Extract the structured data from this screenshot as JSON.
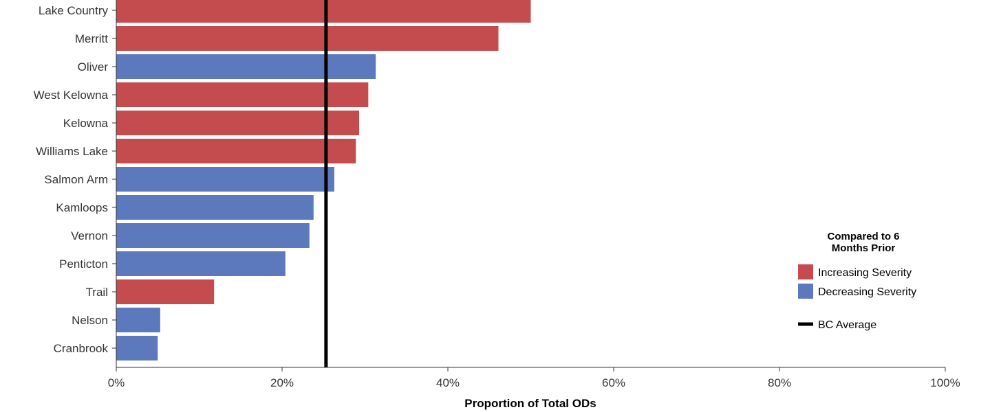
{
  "chart_data": {
    "type": "bar",
    "orientation": "horizontal",
    "categories": [
      "Lake Country",
      "Merritt",
      "Oliver",
      "West Kelowna",
      "Kelowna",
      "Williams Lake",
      "Salmon Arm",
      "Kamloops",
      "Vernon",
      "Penticton",
      "Trail",
      "Nelson",
      "Cranbrook"
    ],
    "values": [
      50.0,
      46.1,
      31.3,
      30.4,
      29.3,
      28.9,
      26.3,
      23.8,
      23.3,
      20.4,
      11.8,
      5.3,
      5.0
    ],
    "value_unit": "%",
    "severity": [
      "increasing",
      "increasing",
      "decreasing",
      "increasing",
      "increasing",
      "increasing",
      "decreasing",
      "decreasing",
      "decreasing",
      "decreasing",
      "increasing",
      "decreasing",
      "decreasing"
    ],
    "reference_line": {
      "label": "BC Average",
      "value": 25.3,
      "color": "#000000"
    },
    "xlabel": "Proportion of Total ODs",
    "ylabel": "",
    "xlim": [
      0,
      100
    ],
    "xticks": [
      0,
      20,
      40,
      60,
      80,
      100
    ],
    "xtick_labels": [
      "0%",
      "20%",
      "40%",
      "60%",
      "80%",
      "100%"
    ],
    "grid": false,
    "legend": {
      "placement": "right",
      "title_lines": [
        "Compared to 6",
        "Months Prior"
      ],
      "entries": [
        {
          "key": "increasing",
          "label": "Increasing Severity",
          "color": "#c44c4e"
        },
        {
          "key": "decreasing",
          "label": "Decreasing Severity",
          "color": "#5d79bd"
        }
      ],
      "line_entry": {
        "label": "BC Average"
      }
    }
  }
}
